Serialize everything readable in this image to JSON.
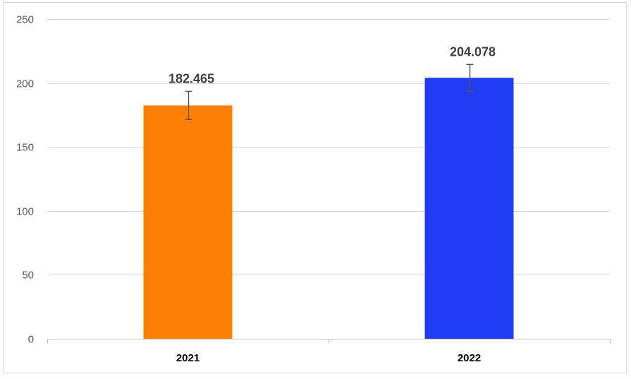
{
  "chart_data": {
    "type": "bar",
    "categories": [
      "2021",
      "2022"
    ],
    "values": [
      182.465,
      204.078
    ],
    "data_labels": [
      "182.465",
      "204.078"
    ],
    "error_bars": [
      {
        "low": 171.5,
        "high": 193.5
      },
      {
        "low": 193.5,
        "high": 214.5
      }
    ],
    "bar_colors": [
      "#ff8000",
      "#1f3df0"
    ],
    "title": "",
    "xlabel": "",
    "ylabel": "",
    "ylim": [
      0,
      250
    ],
    "yticks": [
      0,
      50,
      100,
      150,
      200,
      250
    ],
    "ytick_labels": [
      "0",
      "50",
      "100",
      "150",
      "200",
      "250"
    ],
    "grid": true,
    "legend": "none"
  },
  "colors": {
    "gridline": "#d9d9d9",
    "axis": "#bfbfbf",
    "error_bar": "#595959",
    "data_label": "#404040"
  }
}
